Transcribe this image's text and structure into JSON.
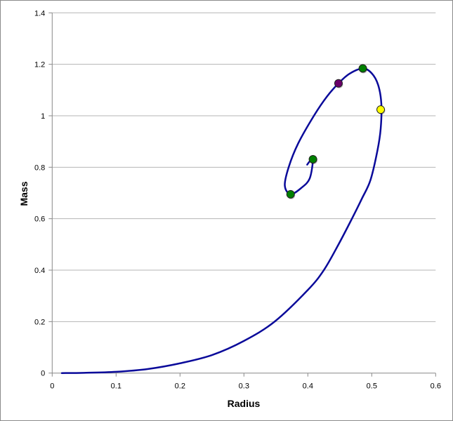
{
  "chart_data": {
    "type": "line",
    "title": "",
    "xlabel": "Radius",
    "ylabel": "Mass",
    "xlim": [
      0,
      0.6
    ],
    "ylim": [
      0,
      1.4
    ],
    "xticks": [
      "0",
      "0.1",
      "0.2",
      "0.3",
      "0.4",
      "0.5",
      "0.6"
    ],
    "yticks": [
      "0",
      "0.2",
      "0.4",
      "0.6",
      "0.8",
      "1",
      "1.2",
      "1.4"
    ],
    "grid": "horizontal",
    "legend": "none",
    "line_color": "#0a0a9a",
    "series": [
      {
        "x": [
          0.015,
          0.05,
          0.1,
          0.15,
          0.2,
          0.25,
          0.3,
          0.348,
          0.4,
          0.425,
          0.448,
          0.469,
          0.485,
          0.498,
          0.509,
          0.514,
          0.515,
          0.51,
          0.5,
          0.486,
          0.465,
          0.448,
          0.43,
          0.41,
          0.385,
          0.37,
          0.364,
          0.373,
          0.39,
          0.403,
          0.408,
          0.403,
          0.399
        ],
        "y": [
          0,
          0.001,
          0.005,
          0.016,
          0.038,
          0.07,
          0.125,
          0.2,
          0.323,
          0.4,
          0.5,
          0.6,
          0.68,
          0.75,
          0.866,
          0.95,
          1.047,
          1.12,
          1.165,
          1.184,
          1.163,
          1.126,
          1.075,
          1.002,
          0.893,
          0.8,
          0.729,
          0.695,
          0.72,
          0.757,
          0.831,
          0.823,
          0.81
        ]
      }
    ],
    "markers": [
      {
        "x": 0.486,
        "y": 1.184,
        "color": "#008000"
      },
      {
        "x": 0.448,
        "y": 1.126,
        "color": "#6a006a"
      },
      {
        "x": 0.514,
        "y": 1.024,
        "color": "#ffff00"
      },
      {
        "x": 0.408,
        "y": 0.831,
        "color": "#008000"
      },
      {
        "x": 0.373,
        "y": 0.695,
        "color": "#008000"
      }
    ]
  }
}
